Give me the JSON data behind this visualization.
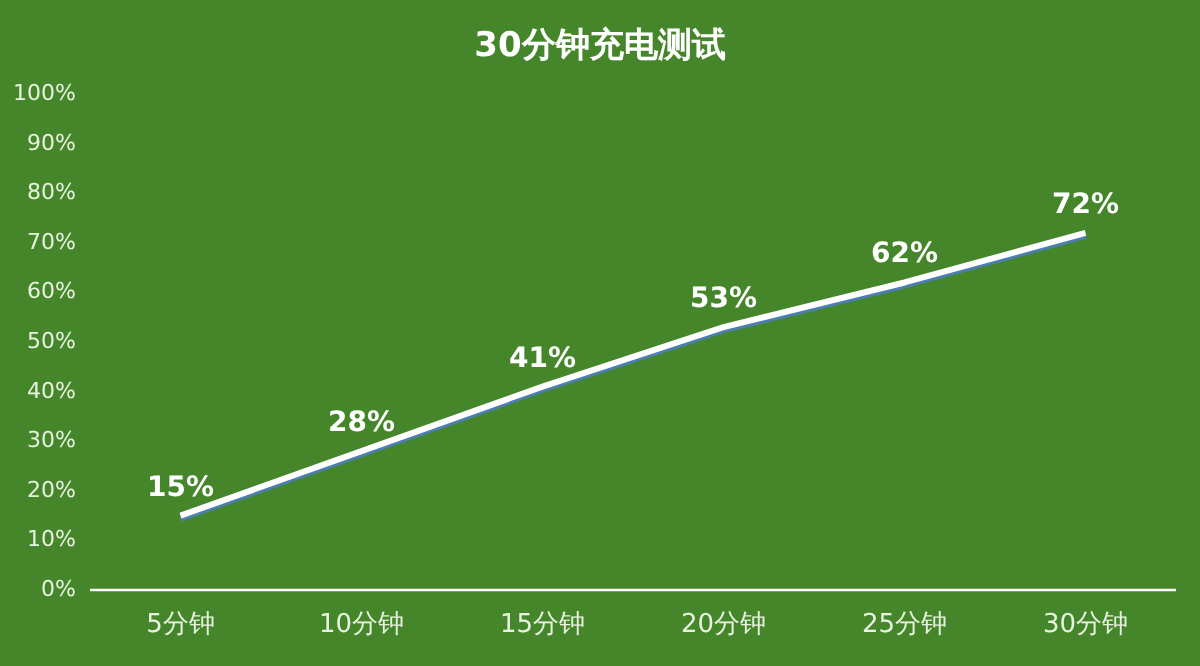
{
  "chart_data": {
    "type": "line",
    "title": "30分钟充电测试",
    "categories": [
      "5分钟",
      "10分钟",
      "15分钟",
      "20分钟",
      "25分钟",
      "30分钟"
    ],
    "values": [
      15,
      28,
      41,
      53,
      62,
      72
    ],
    "value_labels": [
      "15%",
      "28%",
      "41%",
      "53%",
      "62%",
      "72%"
    ],
    "color": "#ffffff",
    "ylim": [
      0,
      100
    ],
    "yticks": [
      {
        "value": 0,
        "label": "0%"
      },
      {
        "value": 10,
        "label": "10%"
      },
      {
        "value": 20,
        "label": "20%"
      },
      {
        "value": 30,
        "label": "30%"
      },
      {
        "value": 40,
        "label": "40%"
      },
      {
        "value": 50,
        "label": "50%"
      },
      {
        "value": 60,
        "label": "60%"
      },
      {
        "value": 70,
        "label": "70%"
      },
      {
        "value": 80,
        "label": "80%"
      },
      {
        "value": 90,
        "label": "90%"
      },
      {
        "value": 100,
        "label": "100%"
      }
    ]
  }
}
